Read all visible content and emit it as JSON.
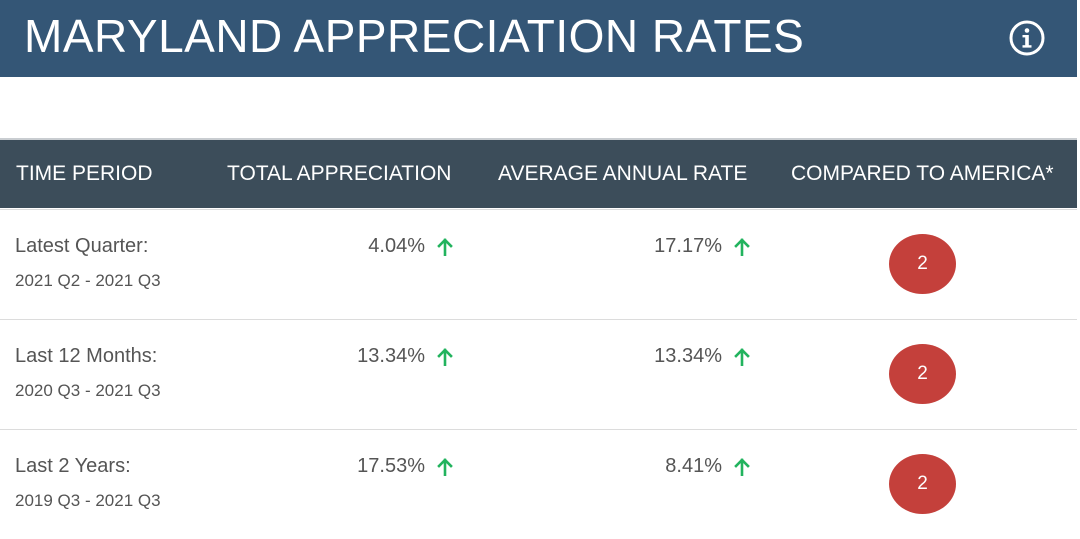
{
  "header": {
    "title": "MARYLAND APPRECIATION RATES"
  },
  "table": {
    "columns": [
      "TIME PERIOD",
      "TOTAL APPRECIATION",
      "AVERAGE ANNUAL RATE",
      "COMPARED TO AMERICA*"
    ],
    "rows": [
      {
        "label": "Latest Quarter:",
        "range": "2021 Q2 - 2021 Q3",
        "total": "4.04%",
        "annual": "17.17%",
        "rank": "2"
      },
      {
        "label": "Last 12 Months:",
        "range": "2020 Q3 - 2021 Q3",
        "total": "13.34%",
        "annual": "13.34%",
        "rank": "2"
      },
      {
        "label": "Last 2 Years:",
        "range": "2019 Q3 - 2021 Q3",
        "total": "17.53%",
        "annual": "8.41%",
        "rank": "2"
      }
    ]
  },
  "icons": {
    "info": "info-circle-icon",
    "trend": "arrow-up-icon"
  },
  "colors": {
    "header_bg": "#345676",
    "table_head_bg": "#3c4d5a",
    "up_arrow": "#22b35e",
    "rank_badge": "#c4403b"
  }
}
